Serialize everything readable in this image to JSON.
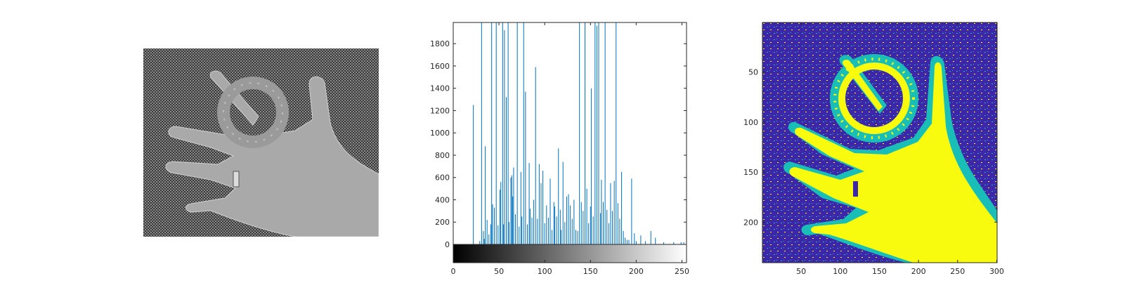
{
  "figure": {
    "panels": [
      "grayscale-image",
      "intensity-histogram",
      "quantized-label-map"
    ]
  },
  "colors": {
    "background": "#ffffff",
    "axes": "#262626",
    "bars": "#0072bd",
    "label_low": "#3e26a8",
    "label_mid": "#19bfb7",
    "label_high": "#f9fb0e"
  },
  "chart_data": [
    {
      "type": "image",
      "description_visible": "grayscale photograph shown without axes",
      "colormap": "gray"
    },
    {
      "type": "bar",
      "title": "",
      "xlabel": "",
      "ylabel": "",
      "xlim": [
        0,
        255
      ],
      "ylim": [
        0,
        1990
      ],
      "xticks": [
        0,
        50,
        100,
        150,
        200,
        250
      ],
      "yticks": [
        0,
        200,
        400,
        600,
        800,
        1000,
        1200,
        1400,
        1600,
        1800
      ],
      "grid": false,
      "colorbar": "grayscale ramp 0-255 below axis",
      "bins": [
        [
          22,
          1250
        ],
        [
          29,
          30
        ],
        [
          31,
          2000
        ],
        [
          33,
          120
        ],
        [
          34,
          50
        ],
        [
          35,
          880
        ],
        [
          37,
          220
        ],
        [
          39,
          90
        ],
        [
          41,
          180
        ],
        [
          42,
          2000
        ],
        [
          43,
          360
        ],
        [
          45,
          330
        ],
        [
          47,
          2000
        ],
        [
          49,
          170
        ],
        [
          51,
          490
        ],
        [
          52,
          560
        ],
        [
          54,
          2000
        ],
        [
          55,
          180
        ],
        [
          56,
          1920
        ],
        [
          58,
          1320
        ],
        [
          60,
          2000
        ],
        [
          61,
          200
        ],
        [
          63,
          600
        ],
        [
          64,
          620
        ],
        [
          65,
          430
        ],
        [
          66,
          690
        ],
        [
          68,
          270
        ],
        [
          70,
          2000
        ],
        [
          72,
          160
        ],
        [
          74,
          650
        ],
        [
          75,
          250
        ],
        [
          77,
          2000
        ],
        [
          79,
          1370
        ],
        [
          81,
          180
        ],
        [
          83,
          730
        ],
        [
          84,
          320
        ],
        [
          86,
          240
        ],
        [
          88,
          400
        ],
        [
          90,
          1590
        ],
        [
          92,
          230
        ],
        [
          94,
          720
        ],
        [
          96,
          550
        ],
        [
          98,
          660
        ],
        [
          100,
          190
        ],
        [
          102,
          350
        ],
        [
          104,
          240
        ],
        [
          106,
          590
        ],
        [
          108,
          130
        ],
        [
          110,
          380
        ],
        [
          111,
          340
        ],
        [
          113,
          250
        ],
        [
          115,
          860
        ],
        [
          117,
          310
        ],
        [
          118,
          130
        ],
        [
          120,
          740
        ],
        [
          122,
          200
        ],
        [
          124,
          430
        ],
        [
          126,
          450
        ],
        [
          128,
          350
        ],
        [
          130,
          230
        ],
        [
          132,
          400
        ],
        [
          134,
          130
        ],
        [
          136,
          120
        ],
        [
          138,
          2000
        ],
        [
          140,
          380
        ],
        [
          142,
          300
        ],
        [
          144,
          2000
        ],
        [
          146,
          500
        ],
        [
          148,
          190
        ],
        [
          150,
          340
        ],
        [
          151,
          1400
        ],
        [
          153,
          250
        ],
        [
          155,
          2000
        ],
        [
          157,
          1960
        ],
        [
          159,
          2000
        ],
        [
          161,
          280
        ],
        [
          162,
          580
        ],
        [
          164,
          380
        ],
        [
          166,
          2000
        ],
        [
          168,
          310
        ],
        [
          170,
          190
        ],
        [
          172,
          550
        ],
        [
          174,
          300
        ],
        [
          176,
          570
        ],
        [
          178,
          2000
        ],
        [
          180,
          370
        ],
        [
          182,
          230
        ],
        [
          184,
          650
        ],
        [
          186,
          120
        ],
        [
          188,
          60
        ],
        [
          190,
          40
        ],
        [
          192,
          40
        ],
        [
          195,
          590
        ],
        [
          198,
          100
        ],
        [
          200,
          30
        ],
        [
          205,
          80
        ],
        [
          210,
          30
        ],
        [
          216,
          120
        ],
        [
          221,
          60
        ],
        [
          230,
          20
        ],
        [
          241,
          20
        ],
        [
          249,
          20
        ],
        [
          252,
          20
        ]
      ]
    },
    {
      "type": "heatmap",
      "colormap": "parula",
      "levels": 3,
      "xlim": [
        0.5,
        300.5
      ],
      "ylim": [
        0.5,
        240.5
      ],
      "xticks": [
        50,
        100,
        150,
        200,
        250,
        300
      ],
      "yticks": [
        50,
        100,
        150,
        200
      ],
      "grid": false
    }
  ]
}
